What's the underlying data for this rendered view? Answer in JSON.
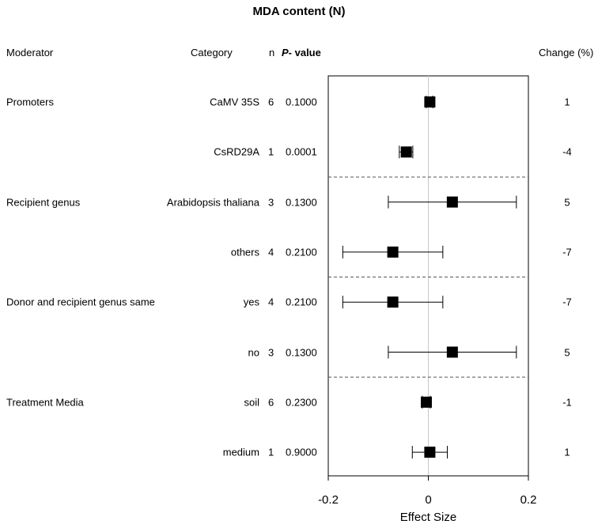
{
  "title": "MDA content (N)",
  "headers": {
    "moderator": "Moderator",
    "category": "Category",
    "n": "n",
    "p_value_italic": "P",
    "p_value_rest": "- value",
    "change": "Change (%)"
  },
  "chart_data": {
    "type": "forest",
    "title": "MDA content (N)",
    "xlabel": "Effect Size",
    "xlim": [
      -0.2,
      0.2
    ],
    "xticks": [
      "-0.2",
      "0",
      "0.2"
    ],
    "grid": false,
    "reference_line_x": 0,
    "groups": [
      {
        "moderator": "Promoters",
        "rows": [
          0,
          1
        ]
      },
      {
        "moderator": "Recipient genus",
        "rows": [
          2,
          3
        ]
      },
      {
        "moderator": "Donor and recipient genus same",
        "rows": [
          4,
          5
        ]
      },
      {
        "moderator": "Treatment Media",
        "rows": [
          6,
          7
        ]
      }
    ],
    "rows": [
      {
        "moderator": "Promoters",
        "category": "CaMV 35S",
        "n": "6",
        "p": "0.1000",
        "change": "1",
        "effect": 0.003,
        "ci": [
          -0.004,
          0.009
        ]
      },
      {
        "moderator": "",
        "category": "CsRD29A",
        "n": "1",
        "p": "0.0001",
        "change": "-4",
        "effect": -0.044,
        "ci": [
          -0.058,
          -0.031
        ]
      },
      {
        "moderator": "Recipient genus",
        "category": "Arabidopsis thaliana",
        "n": "3",
        "p": "0.1300",
        "change": "5",
        "effect": 0.048,
        "ci": [
          -0.08,
          0.176
        ]
      },
      {
        "moderator": "",
        "category": "others",
        "n": "4",
        "p": "0.2100",
        "change": "-7",
        "effect": -0.071,
        "ci": [
          -0.171,
          0.029
        ]
      },
      {
        "moderator": "Donor and recipient genus same",
        "category": "yes",
        "n": "4",
        "p": "0.2100",
        "change": "-7",
        "effect": -0.071,
        "ci": [
          -0.171,
          0.029
        ]
      },
      {
        "moderator": "",
        "category": "no",
        "n": "3",
        "p": "0.1300",
        "change": "5",
        "effect": 0.048,
        "ci": [
          -0.08,
          0.176
        ]
      },
      {
        "moderator": "Treatment Media",
        "category": "soil",
        "n": "6",
        "p": "0.2300",
        "change": "-1",
        "effect": -0.004,
        "ci": [
          -0.012,
          0.004
        ]
      },
      {
        "moderator": "",
        "category": "medium",
        "n": "1",
        "p": "0.9000",
        "change": "1",
        "effect": 0.003,
        "ci": [
          -0.032,
          0.038
        ]
      }
    ]
  }
}
